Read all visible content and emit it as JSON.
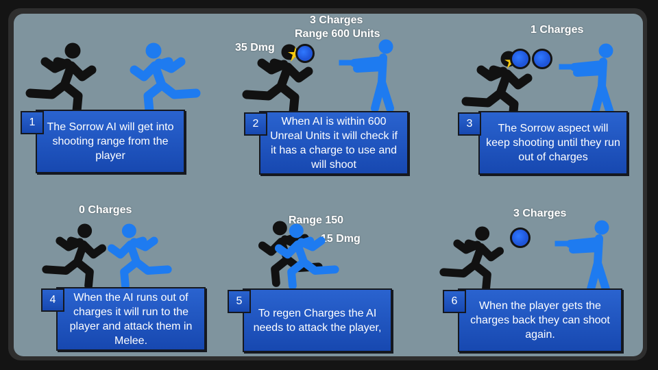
{
  "steps": [
    {
      "number": "1",
      "text": "The Sorrow AI will get into shooting range from the player"
    },
    {
      "number": "2",
      "text": "When AI is within 600 Unreal Units it will check if it has a charge to use and will shoot"
    },
    {
      "number": "3",
      "text": "The Sorrow aspect will keep shooting until they run out of charges"
    },
    {
      "number": "4",
      "text": "When the AI runs out of charges it will run to the player and attack them in Melee."
    },
    {
      "number": "5",
      "text": "To regen Charges the AI needs to attack the player,"
    },
    {
      "number": "6",
      "text": "When the player gets the charges back they can shoot again."
    }
  ],
  "annotations": {
    "p2_charges": "3 Charges",
    "p2_range": "Range 600 Units",
    "p2_dmg": "35 Dmg",
    "p3_charges": "1 Charges",
    "p4_charges": "0 Charges",
    "p5_range": "Range 150",
    "p5_dmg": "15 Dmg",
    "p6_charges": "3 Charges"
  },
  "colors": {
    "player": "#111111",
    "ai": "#1e7bf0",
    "orb": "#1f55d8",
    "box": "#1d52c0"
  }
}
